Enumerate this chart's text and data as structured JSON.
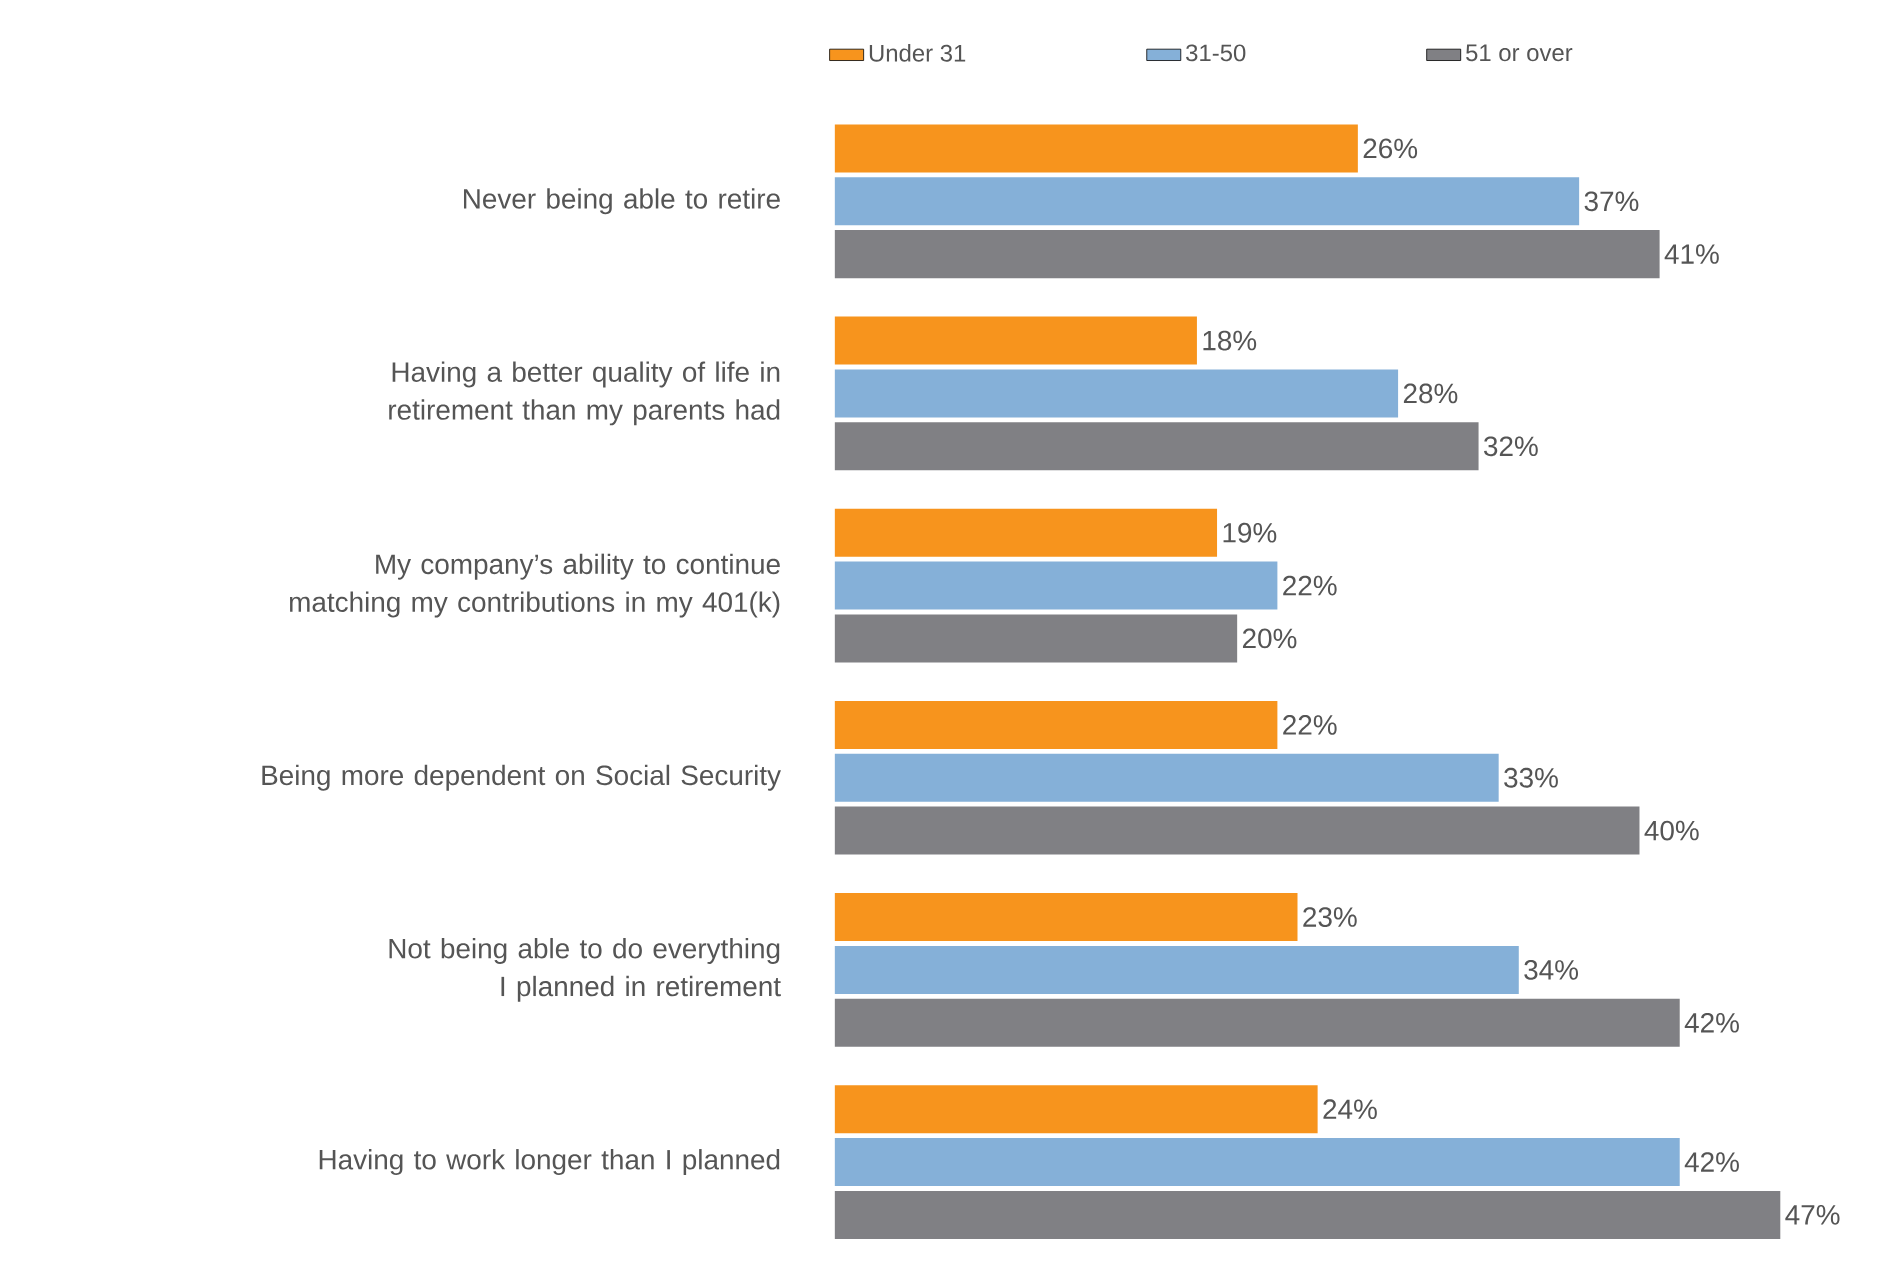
{
  "chart_data": {
    "type": "bar",
    "orientation": "horizontal",
    "legend": "top",
    "tick_labels": "y",
    "categories": [
      "Never being able to retire",
      "Having a better quality of life in retirement than my parents had",
      "My company’s ability to continue matching my contributions in my 401(k)",
      "Being more dependent on Social Security",
      "Not being able to do everything I planned in retirement",
      "Having to work longer than I planned"
    ],
    "series": [
      {
        "name": "Under 31",
        "color": "#f7941d",
        "values": [
          26,
          18,
          19,
          22,
          23,
          24
        ],
        "value_labels": [
          "26%",
          "18%",
          "19%",
          "22%",
          "23%",
          "24%"
        ]
      },
      {
        "name": "31-50",
        "color": "#85b0d8",
        "values": [
          37,
          28,
          22,
          33,
          34,
          42
        ],
        "value_labels": [
          "37%",
          "28%",
          "22%",
          "33%",
          "34%",
          "42%"
        ]
      },
      {
        "name": "51 or over",
        "color": "#808084",
        "values": [
          41,
          32,
          20,
          40,
          42,
          47
        ],
        "value_labels": [
          "41%",
          "32%",
          "20%",
          "40%",
          "42%",
          "47%"
        ]
      }
    ]
  }
}
